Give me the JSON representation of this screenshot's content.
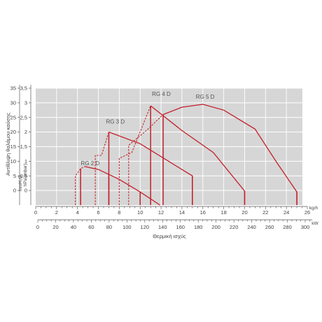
{
  "chart_data": {
    "type": "line",
    "ylabel_outer": "Αντίθλιψη θαλάμου καύσης",
    "ylabel_mmH2O": "mmH₂O",
    "ylabel_hPa": "hPa (mbar)",
    "y_mm_ticks": [
      "0",
      "5",
      "10",
      "15",
      "20",
      "25",
      "30",
      "35"
    ],
    "y_hpa_ticks": [
      "0",
      "0,5",
      "1",
      "1,5",
      "2",
      "2,5",
      "3",
      "3,5"
    ],
    "ylim_hpa": [
      -0.5,
      3.5
    ],
    "x_kgh_ticks": [
      "0",
      "2",
      "4",
      "6",
      "8",
      "10",
      "12",
      "14",
      "16",
      "18",
      "20",
      "22",
      "24",
      "26"
    ],
    "x_kgh_unit": "kg/h",
    "xlim_kgh": [
      0,
      26
    ],
    "x_kw_ticks": [
      "0",
      "20",
      "40",
      "60",
      "80",
      "100",
      "120",
      "140",
      "160",
      "180",
      "200",
      "220",
      "240",
      "260",
      "280",
      "300"
    ],
    "x_kw_unit": "kW",
    "xlim_kw": [
      0,
      308
    ],
    "xlabel": "Θερμική ισχύς",
    "series": [
      {
        "name": "RG 2 D",
        "dashed": [
          [
            3.8,
            -0.5
          ],
          [
            3.8,
            0.5
          ],
          [
            4.3,
            0.75
          ],
          [
            4.7,
            0.82
          ]
        ],
        "curve": [
          [
            4.7,
            0.82
          ],
          [
            6.0,
            0.72
          ],
          [
            8.0,
            0.38
          ],
          [
            10.0,
            -0.05
          ],
          [
            11.9,
            -0.5
          ]
        ],
        "verticals": [
          [
            4.3,
            0.75
          ],
          [
            7.0,
            0.5
          ],
          [
            10.0,
            -0.05
          ]
        ],
        "base_segments": [
          [
            4.3,
            4.7
          ],
          [
            7.0,
            10.0
          ]
        ]
      },
      {
        "name": "RG 3 D",
        "dashed": [
          [
            5.7,
            -0.5
          ],
          [
            5.7,
            1.2
          ],
          [
            6.3,
            1.2
          ],
          [
            7.0,
            2.0
          ]
        ],
        "curve": [
          [
            7.0,
            2.0
          ],
          [
            10.0,
            1.6
          ],
          [
            15.0,
            0.5
          ],
          [
            15.0,
            -0.5
          ]
        ],
        "verticals": [
          [
            7.0,
            2.0
          ],
          [
            15.0,
            0.5
          ]
        ],
        "base_segments": [
          [
            7.0,
            7.0
          ]
        ]
      },
      {
        "name": "RG 4 D",
        "dashed": [
          [
            8.0,
            -0.5
          ],
          [
            8.0,
            1.1
          ],
          [
            9.2,
            1.3
          ],
          [
            11.0,
            2.9
          ]
        ],
        "curve": [
          [
            11.0,
            2.9
          ],
          [
            14.0,
            2.05
          ],
          [
            17.0,
            1.3
          ],
          [
            20.0,
            -0.02
          ],
          [
            20.0,
            -0.5
          ]
        ],
        "verticals": [
          [
            11.0,
            2.9
          ],
          [
            20.0,
            -0.02
          ]
        ],
        "base_segments": [
          [
            11.0,
            11.0
          ]
        ]
      },
      {
        "name": "RG 5 D",
        "dashed": [
          [
            8.9,
            -0.5
          ],
          [
            8.9,
            1.55
          ],
          [
            10.6,
            2.05
          ],
          [
            12.2,
            2.6
          ]
        ],
        "curve": [
          [
            12.2,
            2.6
          ],
          [
            14.0,
            2.85
          ],
          [
            16.0,
            2.95
          ],
          [
            18.0,
            2.75
          ],
          [
            21.0,
            2.1
          ],
          [
            23.0,
            1.0
          ],
          [
            25.0,
            -0.05
          ],
          [
            25.0,
            -0.5
          ]
        ],
        "verticals": [
          [
            12.2,
            2.6
          ],
          [
            25.0,
            -0.05
          ]
        ],
        "base_segments": [
          [
            12.2,
            12.2
          ]
        ]
      }
    ],
    "colors": {
      "plot_bg": "#d6d6d6",
      "grid": "#ffffff",
      "curve": "#c3202b",
      "axis": "#555555",
      "text": "#444444"
    }
  }
}
